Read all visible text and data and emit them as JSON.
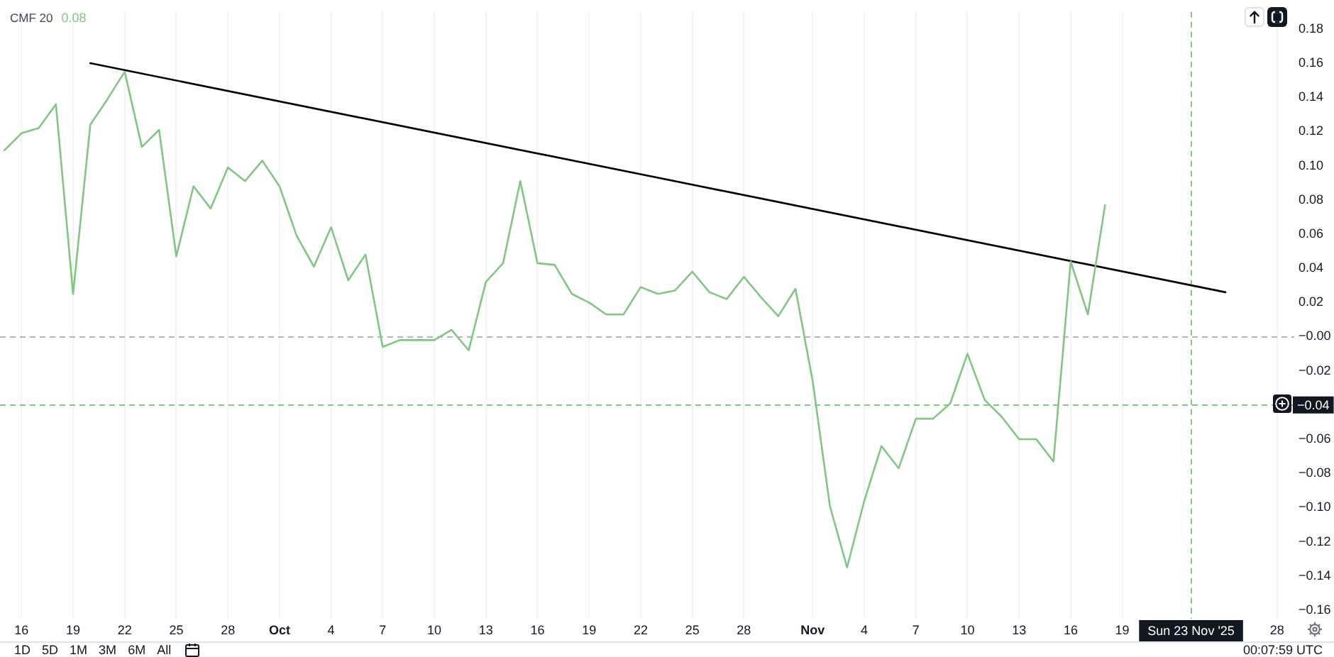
{
  "chart_data": {
    "type": "line",
    "title": "CMF 20",
    "annotations": [
      "0.08",
      "1D",
      "5D",
      "1M",
      "3M",
      "6M",
      "All",
      "00:07:59 UTC"
    ],
    "series": [
      {
        "color": "#81c784",
        "x": [
          "2025-09-15",
          "2025-09-16",
          "2025-09-17",
          "2025-09-18",
          "2025-09-19",
          "2025-09-20",
          "2025-09-21",
          "2025-09-22",
          "2025-09-23",
          "2025-09-24",
          "2025-09-25",
          "2025-09-26",
          "2025-09-27",
          "2025-09-28",
          "2025-09-29",
          "2025-09-30",
          "2025-10-01",
          "2025-10-02",
          "2025-10-03",
          "2025-10-04",
          "2025-10-05",
          "2025-10-06",
          "2025-10-07",
          "2025-10-08",
          "2025-10-09",
          "2025-10-10",
          "2025-10-11",
          "2025-10-12",
          "2025-10-13",
          "2025-10-14",
          "2025-10-15",
          "2025-10-16",
          "2025-10-17",
          "2025-10-18",
          "2025-10-19",
          "2025-10-20",
          "2025-10-21",
          "2025-10-22",
          "2025-10-23",
          "2025-10-24",
          "2025-10-25",
          "2025-10-26",
          "2025-10-27",
          "2025-10-28",
          "2025-10-29",
          "2025-10-30",
          "2025-10-31",
          "2025-11-01",
          "2025-11-02",
          "2025-11-03",
          "2025-11-04",
          "2025-11-05",
          "2025-11-06",
          "2025-11-07",
          "2025-11-08",
          "2025-11-09",
          "2025-11-10",
          "2025-11-11",
          "2025-11-12",
          "2025-11-13",
          "2025-11-14",
          "2025-11-15",
          "2025-11-16",
          "2025-11-17",
          "2025-11-18"
        ],
        "values": [
          0.109,
          0.119,
          0.122,
          0.136,
          0.025,
          0.124,
          0.139,
          0.155,
          0.111,
          0.121,
          0.047,
          0.088,
          0.075,
          0.099,
          0.091,
          0.103,
          0.088,
          0.059,
          0.041,
          0.064,
          0.033,
          0.048,
          -0.006,
          -0.002,
          -0.002,
          -0.002,
          0.004,
          -0.008,
          0.032,
          0.043,
          0.091,
          0.043,
          0.042,
          0.025,
          0.02,
          0.013,
          0.013,
          0.029,
          0.025,
          0.027,
          0.038,
          0.026,
          0.022,
          0.035,
          0.023,
          0.012,
          0.028,
          -0.026,
          -0.099,
          -0.135,
          -0.096,
          -0.064,
          -0.077,
          -0.048,
          -0.048,
          -0.039,
          -0.01,
          -0.037,
          -0.047,
          -0.06,
          -0.06,
          -0.073,
          0.044,
          0.013,
          0.077
        ]
      },
      {
        "color": "#000000",
        "x": [
          "2025-09-20",
          "2025-11-25"
        ],
        "values": [
          0.16,
          0.026
        ]
      }
    ],
    "xlim": [
      "2025-09-14T18:00",
      "2025-11-29"
    ],
    "xticks": [
      {
        "value": "2025-09-16",
        "label": "16"
      },
      {
        "value": "2025-09-19",
        "label": "19"
      },
      {
        "value": "2025-09-22",
        "label": "22"
      },
      {
        "value": "2025-09-25",
        "label": "25"
      },
      {
        "value": "2025-09-28",
        "label": "28"
      },
      {
        "value": "2025-10-01",
        "label": "Oct"
      },
      {
        "value": "2025-10-04",
        "label": "4"
      },
      {
        "value": "2025-10-07",
        "label": "7"
      },
      {
        "value": "2025-10-10",
        "label": "10"
      },
      {
        "value": "2025-10-13",
        "label": "13"
      },
      {
        "value": "2025-10-16",
        "label": "16"
      },
      {
        "value": "2025-10-19",
        "label": "19"
      },
      {
        "value": "2025-10-22",
        "label": "22"
      },
      {
        "value": "2025-10-25",
        "label": "25"
      },
      {
        "value": "2025-10-28",
        "label": "28"
      },
      {
        "value": "2025-11-01",
        "label": "Nov"
      },
      {
        "value": "2025-11-04",
        "label": "4"
      },
      {
        "value": "2025-11-07",
        "label": "7"
      },
      {
        "value": "2025-11-10",
        "label": "10"
      },
      {
        "value": "2025-11-13",
        "label": "13"
      },
      {
        "value": "2025-11-16",
        "label": "16"
      },
      {
        "value": "2025-11-19",
        "label": "19"
      },
      {
        "value": "2025-11-28",
        "label": "28"
      }
    ],
    "ylim": [
      -0.165,
      0.19
    ],
    "yticks": [
      {
        "value": -0.16,
        "label": "−0.16"
      },
      {
        "value": -0.14,
        "label": "−0.14"
      },
      {
        "value": -0.12,
        "label": "−0.12"
      },
      {
        "value": -0.1,
        "label": "−0.10"
      },
      {
        "value": -0.08,
        "label": "−0.08"
      },
      {
        "value": -0.06,
        "label": "−0.06"
      },
      {
        "value": -0.04,
        "label": null
      },
      {
        "value": -0.02,
        "label": "−0.02"
      },
      {
        "value": 0,
        "label": "−0.00"
      },
      0.02,
      0.04,
      0.06,
      0.08,
      {
        "value": 0.1,
        "label": "0.10"
      },
      0.12,
      0.14,
      0.16,
      0.18
    ],
    "ref_lines": [
      {
        "axis": "y",
        "value": 0,
        "color": "#b2b5be",
        "line_style": "dashed"
      },
      {
        "axis": "y",
        "value": -0.04,
        "label": "−0.04",
        "color": "#81c784",
        "line_style": "dashed"
      },
      {
        "axis": "x",
        "value": "2025-11-23",
        "label": "Sun 23 Nov '25",
        "color": "#81c784",
        "line_style": "dashed"
      }
    ],
    "grid": "x",
    "marker": "none"
  }
}
